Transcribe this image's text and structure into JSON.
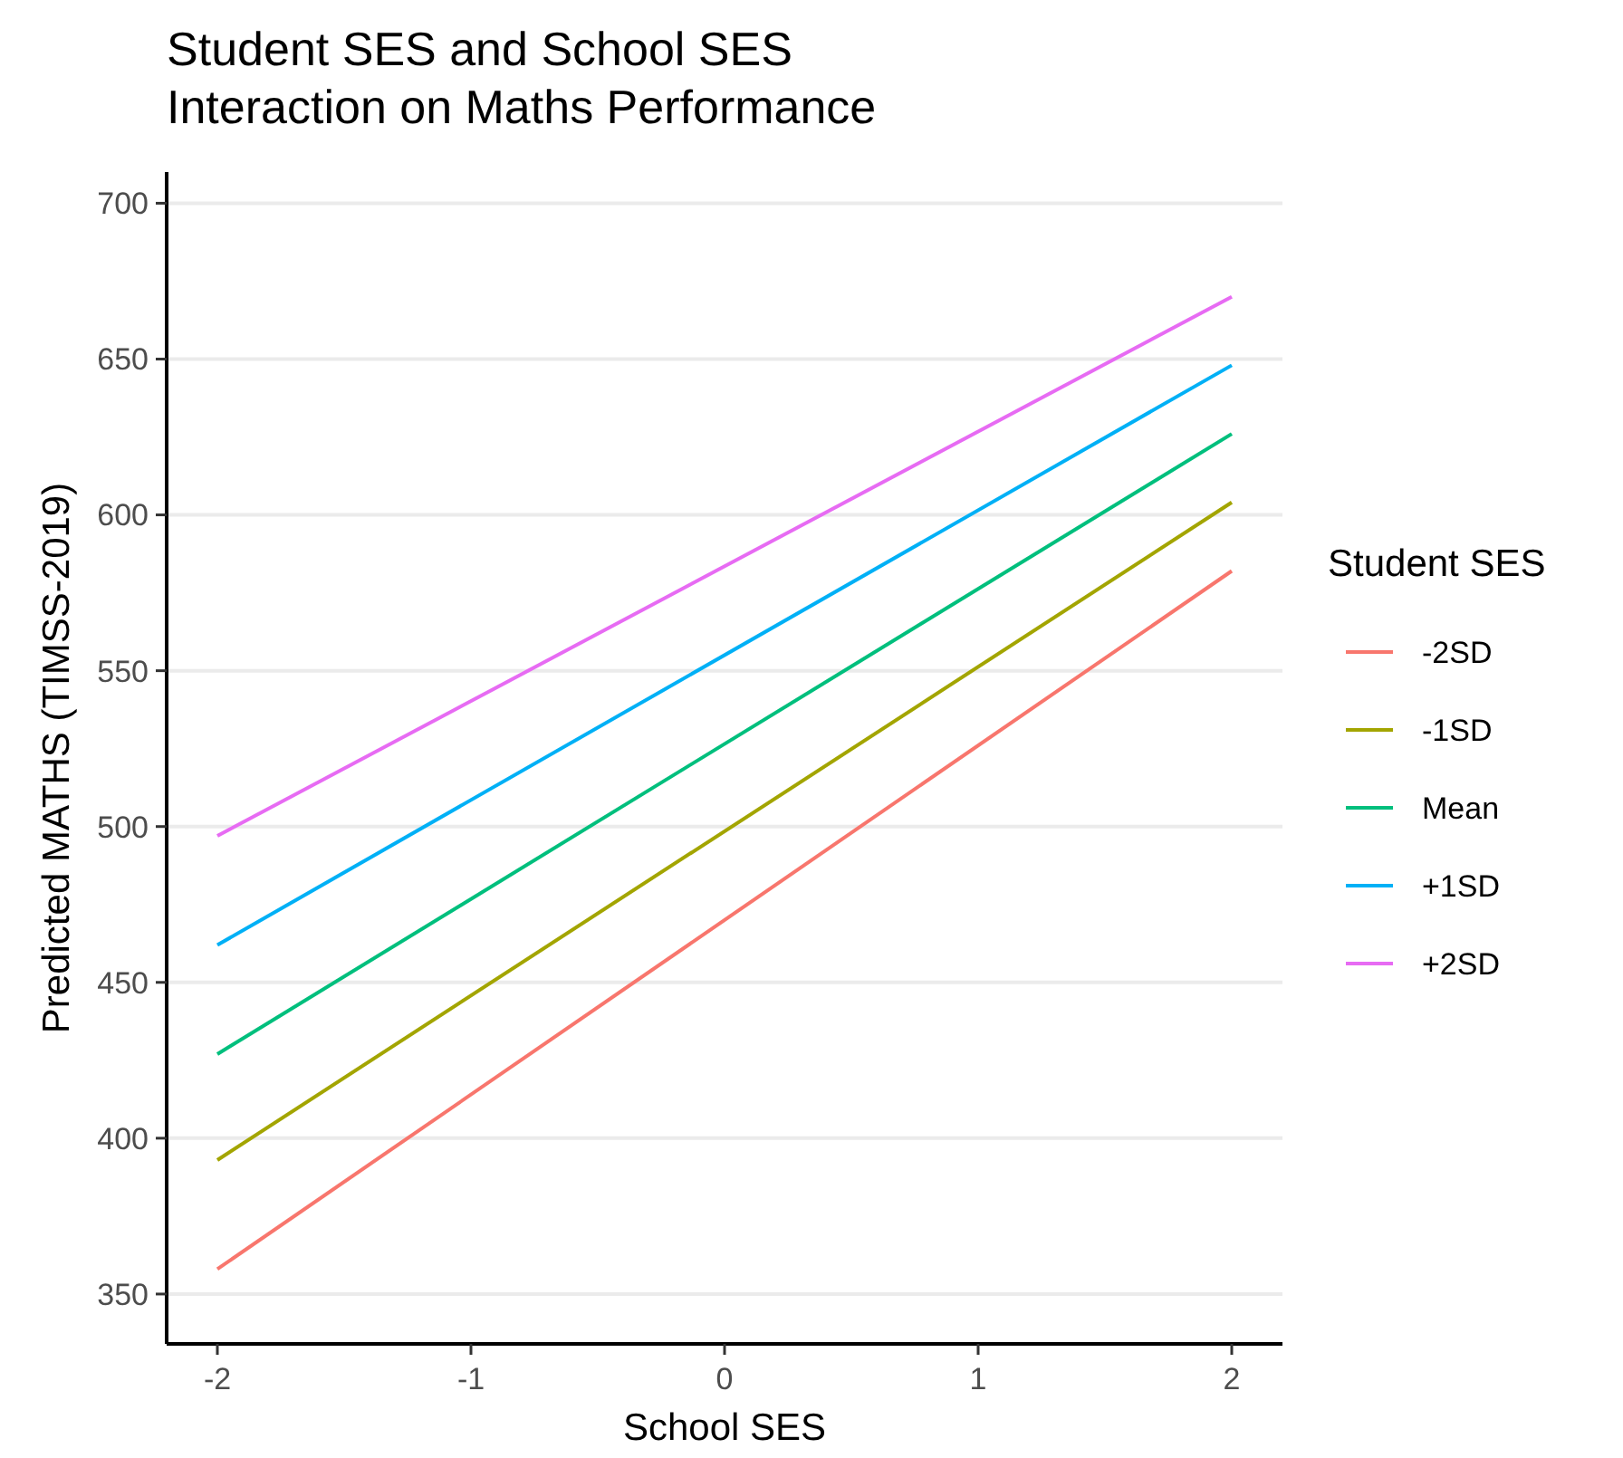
{
  "chart_data": {
    "type": "line",
    "title": "Student SES and School SES\nInteraction on Maths Performance",
    "xlabel": "School SES",
    "ylabel": "Predicted MATHS (TIMSS-2019)",
    "legend_title": "Student SES",
    "x": [
      -2,
      2
    ],
    "xlim": [
      -2.2,
      2.2
    ],
    "xticks": [
      -2,
      -1,
      0,
      1,
      2
    ],
    "ylim": [
      334,
      710
    ],
    "yticks": [
      350,
      400,
      450,
      500,
      550,
      600,
      650,
      700
    ],
    "grid": "y",
    "legend": "right",
    "marker": "none",
    "line_style": "solid",
    "series": [
      {
        "name": "-2SD",
        "color": "#f8766d",
        "values": [
          358,
          582
        ]
      },
      {
        "name": "-1SD",
        "color": "#a3a500",
        "values": [
          393,
          604
        ]
      },
      {
        "name": "Mean",
        "color": "#00bf7d",
        "values": [
          427,
          626
        ]
      },
      {
        "name": "+1SD",
        "color": "#00b0f6",
        "values": [
          462,
          648
        ]
      },
      {
        "name": "+2SD",
        "color": "#e76bf3",
        "values": [
          497,
          670
        ]
      }
    ]
  }
}
